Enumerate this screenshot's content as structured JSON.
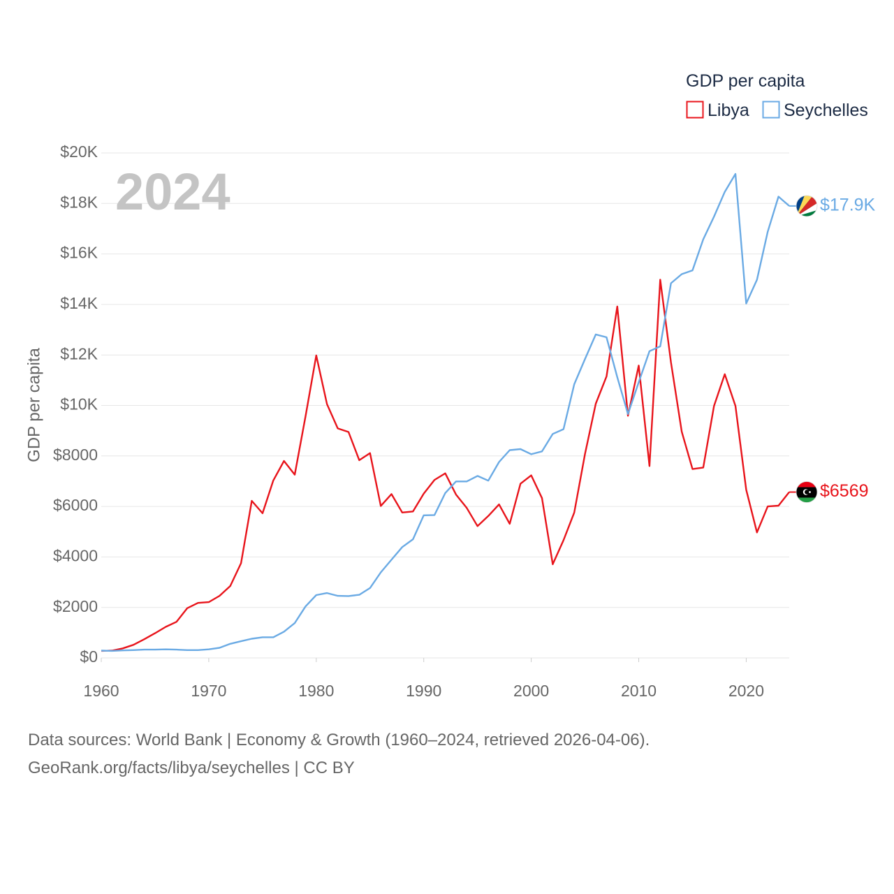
{
  "chart_data": {
    "type": "line",
    "title": "GDP per capita",
    "ylabel": "GDP per capita",
    "xlabel": "",
    "year_label": "2024",
    "xlim": [
      1960,
      2024
    ],
    "ylim": [
      0,
      20000
    ],
    "x_ticks": [
      1960,
      1970,
      1980,
      1990,
      2000,
      2010,
      2020
    ],
    "y_ticks": [
      {
        "value": 0,
        "label": "$0"
      },
      {
        "value": 2000,
        "label": "$2000"
      },
      {
        "value": 4000,
        "label": "$4000"
      },
      {
        "value": 6000,
        "label": "$6000"
      },
      {
        "value": 8000,
        "label": "$8000"
      },
      {
        "value": 10000,
        "label": "$10K"
      },
      {
        "value": 12000,
        "label": "$12K"
      },
      {
        "value": 14000,
        "label": "$14K"
      },
      {
        "value": 16000,
        "label": "$16K"
      },
      {
        "value": 18000,
        "label": "$18K"
      },
      {
        "value": 20000,
        "label": "$20K"
      }
    ],
    "legend_title": "GDP per capita",
    "legend_position": "top-right",
    "series": [
      {
        "name": "Libya",
        "color": "#e8141b",
        "end_label": "$6569",
        "flag": "libya-flag-icon",
        "x": [
          1960,
          1961,
          1962,
          1963,
          1964,
          1965,
          1966,
          1967,
          1968,
          1969,
          1970,
          1971,
          1972,
          1973,
          1974,
          1975,
          1976,
          1977,
          1978,
          1979,
          1980,
          1981,
          1982,
          1983,
          1984,
          1985,
          1986,
          1987,
          1988,
          1989,
          1990,
          1991,
          1992,
          1993,
          1994,
          1995,
          1996,
          1997,
          1998,
          1999,
          2000,
          2001,
          2002,
          2003,
          2004,
          2005,
          2006,
          2007,
          2008,
          2009,
          2010,
          2011,
          2012,
          2013,
          2014,
          2015,
          2016,
          2017,
          2018,
          2019,
          2020,
          2021,
          2022,
          2023,
          2024
        ],
        "values": [
          280,
          290,
          380,
          520,
          740,
          980,
          1230,
          1430,
          1970,
          2180,
          2210,
          2460,
          2850,
          3750,
          6220,
          5730,
          7030,
          7800,
          7260,
          9560,
          11980,
          10050,
          9090,
          8950,
          7830,
          8110,
          6020,
          6490,
          5760,
          5800,
          6510,
          7050,
          7310,
          6470,
          5940,
          5220,
          5620,
          6080,
          5310,
          6900,
          7230,
          6330,
          3710,
          4660,
          5760,
          8080,
          10070,
          11150,
          13920,
          9590,
          11580,
          7600,
          14980,
          11700,
          8960,
          7480,
          7540,
          9980,
          11240,
          9980,
          6660,
          4970,
          6000,
          6030,
          6569
        ]
      },
      {
        "name": "Seychelles",
        "color": "#6aaae4",
        "end_label": "$17.9K",
        "flag": "seychelles-flag-icon",
        "x": [
          1960,
          1961,
          1962,
          1963,
          1964,
          1965,
          1966,
          1967,
          1968,
          1969,
          1970,
          1971,
          1972,
          1973,
          1974,
          1975,
          1976,
          1977,
          1978,
          1979,
          1980,
          1981,
          1982,
          1983,
          1984,
          1985,
          1986,
          1987,
          1988,
          1989,
          1990,
          1991,
          1992,
          1993,
          1994,
          1995,
          1996,
          1997,
          1998,
          1999,
          2000,
          2001,
          2002,
          2003,
          2004,
          2005,
          2006,
          2007,
          2008,
          2009,
          2010,
          2011,
          2012,
          2013,
          2014,
          2015,
          2016,
          2017,
          2018,
          2019,
          2020,
          2021,
          2022,
          2023,
          2024
        ],
        "values": [
          290,
          280,
          300,
          310,
          330,
          330,
          340,
          330,
          310,
          310,
          340,
          400,
          560,
          660,
          760,
          820,
          820,
          1040,
          1380,
          2040,
          2490,
          2570,
          2460,
          2450,
          2500,
          2770,
          3390,
          3890,
          4390,
          4700,
          5650,
          5660,
          6530,
          6990,
          6990,
          7210,
          7020,
          7760,
          8230,
          8270,
          8070,
          8180,
          8870,
          9060,
          10840,
          11840,
          12810,
          12700,
          11120,
          9660,
          10920,
          12150,
          12340,
          14840,
          15200,
          15350,
          16580,
          17480,
          18460,
          19170,
          14040,
          14980,
          16880,
          18270,
          17900
        ]
      }
    ]
  },
  "footer": {
    "line1": "Data sources: World Bank | Economy & Growth (1960–2024, retrieved 2026-04-06).",
    "line2": "GeoRank.org/facts/libya/seychelles | CC BY"
  },
  "colors": {
    "libya": "#e8141b",
    "seychelles": "#6aaae4",
    "grid": "#e6e6e6",
    "axis_text": "#666666",
    "legend_text": "#1c2b44",
    "year_watermark": "#c4c4c4"
  }
}
